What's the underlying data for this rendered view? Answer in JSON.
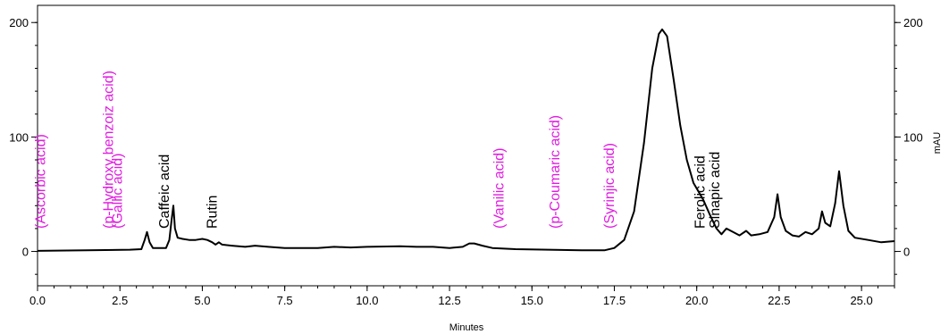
{
  "chart_data": {
    "type": "line",
    "title": "",
    "xlabel": "Minutes",
    "ylabel": "",
    "ylabel_right": "mAU",
    "xlim": [
      0,
      26
    ],
    "ylim": [
      -30,
      215
    ],
    "grid": false,
    "x_ticks": [
      {
        "value": 0,
        "label": "0.0"
      },
      {
        "value": 2.5,
        "label": "2.5"
      },
      {
        "value": 5,
        "label": "5.0"
      },
      {
        "value": 7.5,
        "label": "7.5"
      },
      {
        "value": 10,
        "label": "10.0"
      },
      {
        "value": 12.5,
        "label": "12.5"
      },
      {
        "value": 15,
        "label": "15.0"
      },
      {
        "value": 17.5,
        "label": "17.5"
      },
      {
        "value": 20,
        "label": "20.0"
      },
      {
        "value": 22.5,
        "label": "22.5"
      },
      {
        "value": 25,
        "label": "25.0"
      }
    ],
    "y_ticks_left": [
      {
        "value": 0,
        "label": "0"
      },
      {
        "value": 100,
        "label": "100"
      },
      {
        "value": 200,
        "label": "200"
      }
    ],
    "y_ticks_right": [
      {
        "value": 0,
        "label": "0"
      },
      {
        "value": 100,
        "label": "100"
      },
      {
        "value": 200,
        "label": "200"
      }
    ],
    "series": [
      {
        "color": "#000000",
        "points": [
          [
            0.0,
            0.5
          ],
          [
            1.5,
            1
          ],
          [
            2.8,
            1.5
          ],
          [
            3.15,
            2
          ],
          [
            3.25,
            10
          ],
          [
            3.32,
            17
          ],
          [
            3.4,
            8
          ],
          [
            3.5,
            3
          ],
          [
            3.9,
            3
          ],
          [
            4.0,
            10
          ],
          [
            4.07,
            28
          ],
          [
            4.12,
            40
          ],
          [
            4.17,
            20
          ],
          [
            4.25,
            12
          ],
          [
            4.4,
            11
          ],
          [
            4.6,
            10
          ],
          [
            4.8,
            10
          ],
          [
            5.0,
            11
          ],
          [
            5.15,
            10
          ],
          [
            5.3,
            8
          ],
          [
            5.4,
            6
          ],
          [
            5.5,
            8
          ],
          [
            5.6,
            6
          ],
          [
            5.9,
            5
          ],
          [
            6.3,
            4
          ],
          [
            6.6,
            5
          ],
          [
            7.0,
            4
          ],
          [
            7.5,
            3
          ],
          [
            8.0,
            3
          ],
          [
            8.5,
            3
          ],
          [
            9.0,
            4
          ],
          [
            9.5,
            3.5
          ],
          [
            10.0,
            4
          ],
          [
            11.0,
            4.5
          ],
          [
            11.5,
            4
          ],
          [
            12.0,
            4
          ],
          [
            12.5,
            3
          ],
          [
            12.9,
            4
          ],
          [
            13.1,
            7
          ],
          [
            13.25,
            7
          ],
          [
            13.5,
            5
          ],
          [
            13.8,
            3
          ],
          [
            14.5,
            2
          ],
          [
            15.5,
            1.5
          ],
          [
            16.5,
            1
          ],
          [
            17.2,
            1
          ],
          [
            17.5,
            3
          ],
          [
            17.8,
            10
          ],
          [
            18.1,
            35
          ],
          [
            18.4,
            95
          ],
          [
            18.65,
            160
          ],
          [
            18.85,
            190
          ],
          [
            18.95,
            194
          ],
          [
            19.1,
            188
          ],
          [
            19.3,
            150
          ],
          [
            19.5,
            110
          ],
          [
            19.7,
            80
          ],
          [
            19.9,
            60
          ],
          [
            20.2,
            45
          ],
          [
            20.4,
            32
          ],
          [
            20.6,
            20
          ],
          [
            20.75,
            15
          ],
          [
            20.9,
            20
          ],
          [
            21.1,
            17
          ],
          [
            21.3,
            14
          ],
          [
            21.5,
            18
          ],
          [
            21.65,
            14
          ],
          [
            21.9,
            15
          ],
          [
            22.15,
            17
          ],
          [
            22.35,
            30
          ],
          [
            22.45,
            50
          ],
          [
            22.55,
            30
          ],
          [
            22.7,
            18
          ],
          [
            22.9,
            14
          ],
          [
            23.1,
            13
          ],
          [
            23.3,
            17
          ],
          [
            23.5,
            15
          ],
          [
            23.7,
            20
          ],
          [
            23.8,
            35
          ],
          [
            23.9,
            25
          ],
          [
            24.05,
            22
          ],
          [
            24.2,
            42
          ],
          [
            24.32,
            70
          ],
          [
            24.45,
            40
          ],
          [
            24.6,
            18
          ],
          [
            24.8,
            12
          ],
          [
            25.2,
            10
          ],
          [
            25.6,
            8
          ],
          [
            26.0,
            9
          ]
        ]
      }
    ],
    "annotations": [
      {
        "text": "(Ascorbic acid)",
        "x": 0.1,
        "color": "#e01ee0"
      },
      {
        "text": "(p-Hydroxy benzoiz acid)",
        "x": 2.15,
        "color": "#e01ee0"
      },
      {
        "text": "(Gallic acid)",
        "x": 2.42,
        "color": "#e01ee0"
      },
      {
        "text": "Caffeic acid",
        "x": 3.85,
        "color": "#000000"
      },
      {
        "text": "Rutin",
        "x": 5.3,
        "color": "#000000"
      },
      {
        "text": "(Vanilic acid)",
        "x": 14.0,
        "color": "#e01ee0"
      },
      {
        "text": "(p-Coumaric acid)",
        "x": 15.7,
        "color": "#e01ee0"
      },
      {
        "text": "(Syrinjic acid)",
        "x": 17.35,
        "color": "#e01ee0"
      },
      {
        "text": "Ferolic acid",
        "x": 20.1,
        "color": "#000000"
      },
      {
        "text": "Sinapic acid",
        "x": 20.55,
        "color": "#000000"
      }
    ]
  }
}
